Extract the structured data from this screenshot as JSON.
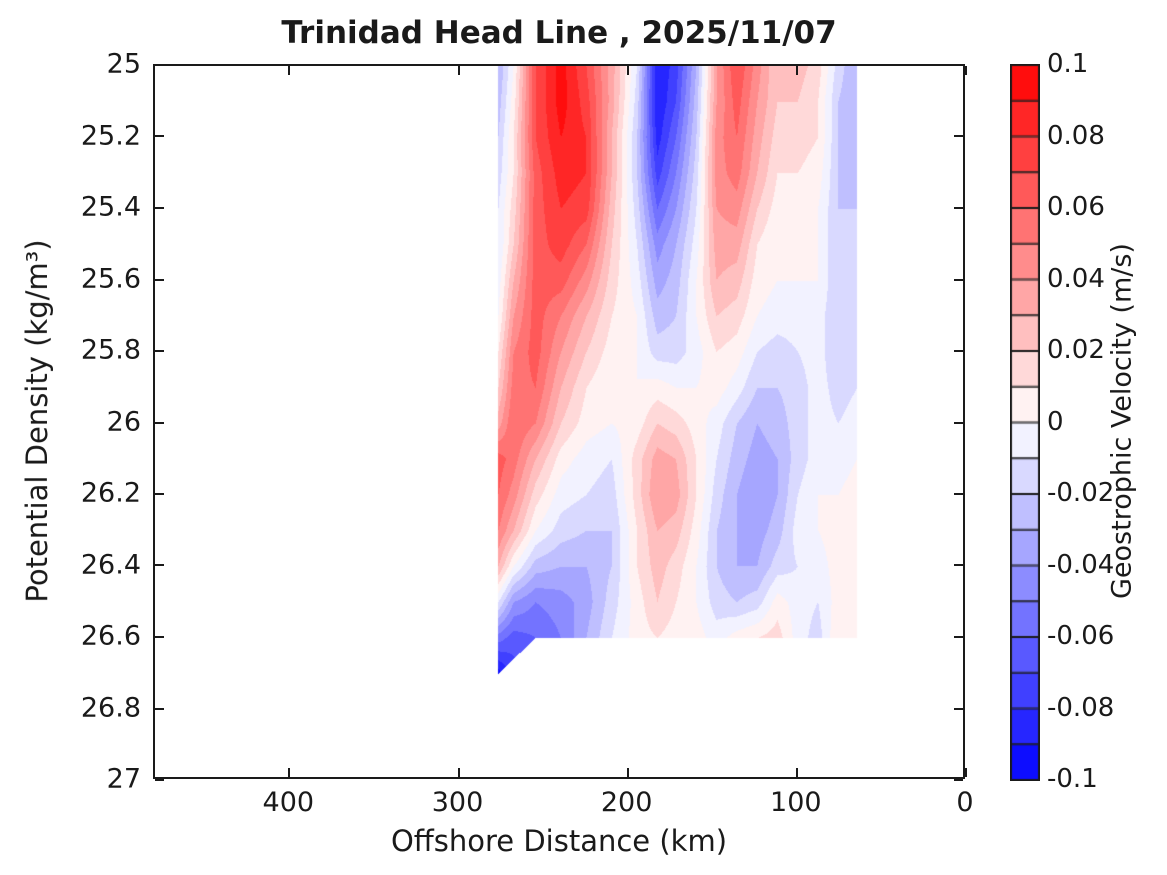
{
  "chart_data": {
    "type": "contourf-heatmap",
    "title": "Trinidad Head Line , 2025/11/07",
    "xlabel": "Offshore Distance (km)",
    "ylabel": "Potential Density (kg/m³)",
    "colorbar_label": "Geostrophic Velocity (m/s)",
    "background_color": "#FFFFFF",
    "axis_color": "#1a1a1a",
    "no_data_color": "#FFFFFF",
    "x_axis": {
      "lim": [
        480,
        0
      ],
      "reversed": true,
      "ticks": [
        400,
        300,
        200,
        100,
        0
      ],
      "tick_labels": [
        "400",
        "300",
        "200",
        "100",
        "0"
      ]
    },
    "y_axis": {
      "lim": [
        25,
        27
      ],
      "increasing_downward": true,
      "ticks": [
        25,
        25.2,
        25.4,
        25.6,
        25.8,
        26,
        26.2,
        26.4,
        26.6,
        26.8,
        27
      ],
      "tick_labels": [
        "25",
        "25.2",
        "25.4",
        "25.6",
        "25.8",
        "26",
        "26.2",
        "26.4",
        "26.6",
        "26.8",
        "27"
      ]
    },
    "colorbar": {
      "clim": [
        -0.1,
        0.1
      ],
      "level_step": 0.01,
      "n_segments": 20,
      "ticks": [
        0.1,
        0.08,
        0.06,
        0.04,
        0.02,
        0,
        -0.02,
        -0.04,
        -0.06,
        -0.08,
        -0.1
      ],
      "tick_labels": [
        "0.1",
        "0.08",
        "0.06",
        "0.04",
        "0.02",
        "0",
        "-0.02",
        "-0.04",
        "-0.06",
        "-0.08",
        "-0.1"
      ],
      "positive_color": "#FF0000",
      "zero_color": "#FFFFFF",
      "negative_color": "#0000FF"
    },
    "grid": {
      "x_km": [
        277,
        268,
        255,
        240,
        225,
        210,
        195,
        183,
        172,
        160,
        148,
        136,
        124,
        112,
        100,
        88,
        76,
        65
      ],
      "sigma": [
        25.0,
        25.1,
        25.2,
        25.3,
        25.4,
        25.5,
        25.6,
        25.7,
        25.8,
        25.9,
        26.0,
        26.1,
        26.2,
        26.3,
        26.4,
        26.5,
        26.6,
        26.7
      ],
      "bottom_boundary": {
        "sigma_max": 26.6,
        "wedge_km_start": 255,
        "wedge_km_full": 277,
        "wedge_sigma_max": 26.7
      },
      "z": [
        [
          -0.03,
          0.0,
          0.07,
          0.095,
          0.07,
          0.035,
          -0.01,
          -0.09,
          -0.075,
          -0.03,
          0.04,
          0.07,
          0.045,
          0.02,
          0.025,
          0.015,
          -0.015,
          -0.03
        ],
        [
          -0.025,
          0.005,
          0.07,
          0.095,
          0.075,
          0.035,
          -0.015,
          -0.09,
          -0.07,
          -0.025,
          0.04,
          0.065,
          0.04,
          0.02,
          0.02,
          0.01,
          -0.02,
          -0.03
        ],
        [
          -0.02,
          0.01,
          0.07,
          0.09,
          0.08,
          0.03,
          -0.02,
          -0.085,
          -0.06,
          -0.02,
          0.045,
          0.06,
          0.035,
          0.015,
          0.015,
          0.01,
          -0.02,
          -0.025
        ],
        [
          -0.015,
          0.01,
          0.065,
          0.085,
          0.08,
          0.03,
          -0.02,
          -0.075,
          -0.05,
          -0.015,
          0.045,
          0.055,
          0.03,
          0.01,
          0.01,
          0.005,
          -0.02,
          -0.025
        ],
        [
          -0.01,
          0.015,
          0.065,
          0.08,
          0.075,
          0.025,
          -0.015,
          -0.06,
          -0.04,
          -0.01,
          0.04,
          0.045,
          0.02,
          0.005,
          0.005,
          0.0,
          -0.02,
          -0.02
        ],
        [
          -0.01,
          0.02,
          0.065,
          0.075,
          0.06,
          0.02,
          -0.01,
          -0.045,
          -0.03,
          -0.005,
          0.035,
          0.035,
          0.01,
          0.0,
          0.0,
          0.0,
          -0.02,
          -0.02
        ],
        [
          -0.005,
          0.03,
          0.065,
          0.065,
          0.045,
          0.015,
          -0.005,
          -0.035,
          -0.025,
          0.0,
          0.03,
          0.025,
          0.005,
          0.0,
          0.0,
          0.0,
          -0.02,
          -0.015
        ],
        [
          0.0,
          0.04,
          0.065,
          0.05,
          0.03,
          0.01,
          0.0,
          -0.025,
          -0.02,
          0.0,
          0.02,
          0.015,
          0.0,
          -0.005,
          -0.005,
          -0.005,
          -0.02,
          -0.015
        ],
        [
          0.01,
          0.05,
          0.065,
          0.04,
          0.02,
          0.005,
          0.0,
          -0.015,
          -0.015,
          -0.005,
          0.01,
          0.005,
          -0.01,
          -0.015,
          -0.01,
          -0.005,
          -0.02,
          -0.01
        ],
        [
          0.02,
          0.055,
          0.06,
          0.03,
          0.01,
          0.0,
          0.0,
          0.005,
          0.0,
          0.0,
          0.005,
          -0.005,
          -0.02,
          -0.02,
          -0.015,
          -0.005,
          -0.015,
          -0.01
        ],
        [
          0.035,
          0.06,
          0.05,
          0.02,
          0.005,
          0.0,
          0.005,
          0.02,
          0.015,
          0.005,
          -0.005,
          -0.02,
          -0.03,
          -0.025,
          -0.015,
          -0.005,
          -0.01,
          -0.005
        ],
        [
          0.065,
          0.055,
          0.03,
          0.005,
          -0.005,
          -0.01,
          0.015,
          0.035,
          0.03,
          0.01,
          -0.01,
          -0.025,
          -0.035,
          -0.03,
          -0.015,
          -0.005,
          -0.005,
          0.0
        ],
        [
          0.06,
          0.045,
          0.015,
          -0.005,
          -0.01,
          -0.015,
          0.015,
          0.04,
          0.035,
          0.01,
          -0.015,
          -0.03,
          -0.04,
          -0.03,
          -0.01,
          0.0,
          0.0,
          0.005
        ],
        [
          0.05,
          0.03,
          0.0,
          -0.015,
          -0.02,
          -0.02,
          0.01,
          0.03,
          0.025,
          0.005,
          -0.02,
          -0.03,
          -0.035,
          -0.025,
          -0.005,
          0.0,
          0.005,
          0.01
        ],
        [
          0.03,
          0.0,
          -0.025,
          -0.03,
          -0.03,
          -0.02,
          0.01,
          0.025,
          0.015,
          0.0,
          -0.02,
          -0.03,
          -0.03,
          -0.015,
          -0.01,
          -0.005,
          0.005,
          0.01
        ],
        [
          -0.01,
          -0.04,
          -0.05,
          -0.045,
          -0.035,
          -0.015,
          0.005,
          0.02,
          0.01,
          0.0,
          -0.015,
          -0.02,
          -0.015,
          0.005,
          -0.005,
          -0.01,
          0.005,
          0.01
        ],
        [
          -0.055,
          -0.065,
          -0.06,
          -0.05,
          -0.03,
          -0.01,
          0.005,
          0.01,
          0.005,
          0.005,
          -0.005,
          0.005,
          0.01,
          0.015,
          -0.005,
          -0.015,
          0.01,
          0.01
        ],
        [
          -0.095,
          -0.075,
          null,
          null,
          null,
          null,
          null,
          null,
          null,
          null,
          null,
          null,
          null,
          null,
          null,
          null,
          null,
          null
        ]
      ]
    }
  }
}
